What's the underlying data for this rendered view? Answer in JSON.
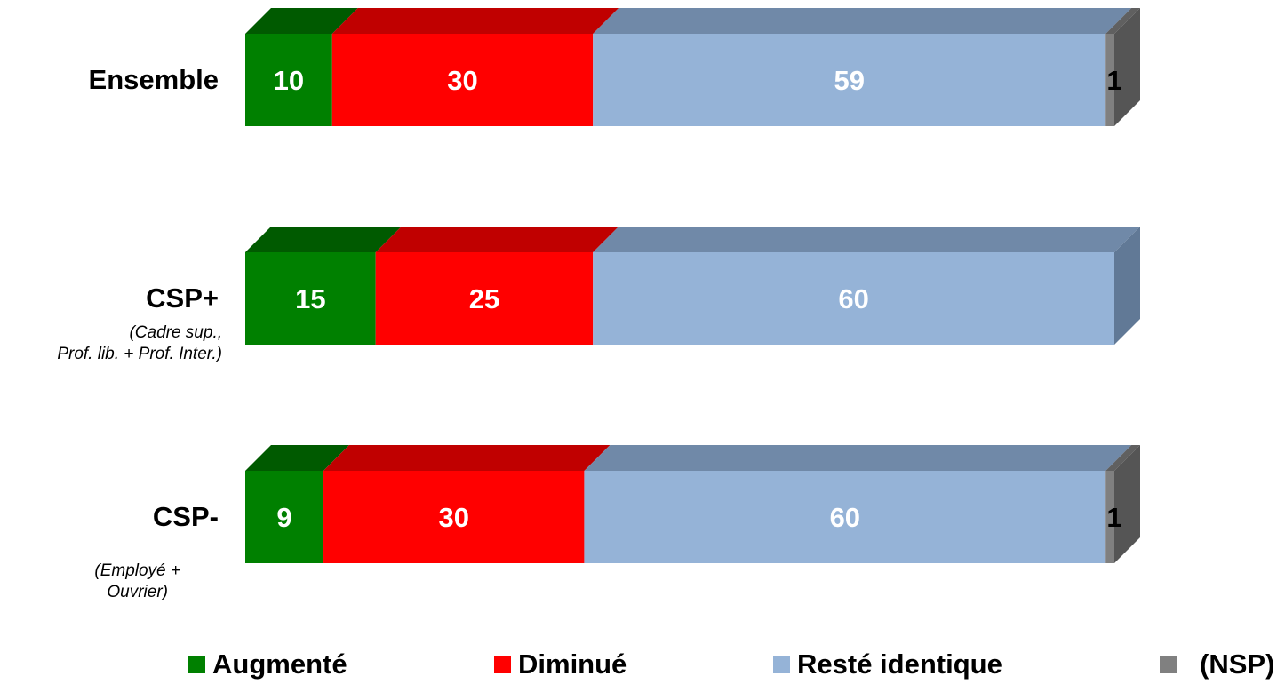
{
  "chart_data": {
    "type": "bar",
    "orientation": "horizontal",
    "stacked": true,
    "normalized_100": true,
    "categories": [
      "Ensemble",
      "CSP+",
      "CSP-"
    ],
    "category_subtitles": [
      "",
      "(Cadre sup., Prof. lib. + Prof. Inter.)",
      "(Employé + Ouvrier)"
    ],
    "category_subtitle_lines": [
      [],
      [
        "(Cadre sup.,",
        "Prof. lib. + Prof. Inter.)"
      ],
      [
        "(Employé +",
        "Ouvrier)"
      ]
    ],
    "series": [
      {
        "name": "Augmenté",
        "color": "#008000",
        "top_color": "#005a00",
        "values": [
          10,
          15,
          9
        ],
        "labels": [
          "10",
          "15",
          "9"
        ]
      },
      {
        "name": "Diminué",
        "color": "#ff0000",
        "top_color": "#c00000",
        "values": [
          30,
          25,
          30
        ],
        "labels": [
          "30",
          "25",
          "30"
        ]
      },
      {
        "name": "Resté identique",
        "color": "#95b3d7",
        "top_color": "#7089a8",
        "side_color": "#617996",
        "values": [
          59,
          60,
          60
        ],
        "labels": [
          "59",
          "60",
          "60"
        ]
      },
      {
        "name": "(NSP)",
        "color": "#808080",
        "top_color": "#606060",
        "side_color": "#555555",
        "values": [
          1,
          0,
          1
        ],
        "labels": [
          "1",
          "",
          "1"
        ]
      }
    ],
    "title": "",
    "xlabel": "",
    "ylabel": "",
    "xlim": [
      0,
      100
    ],
    "grid": false,
    "legend_position": "bottom",
    "three_d": true
  }
}
